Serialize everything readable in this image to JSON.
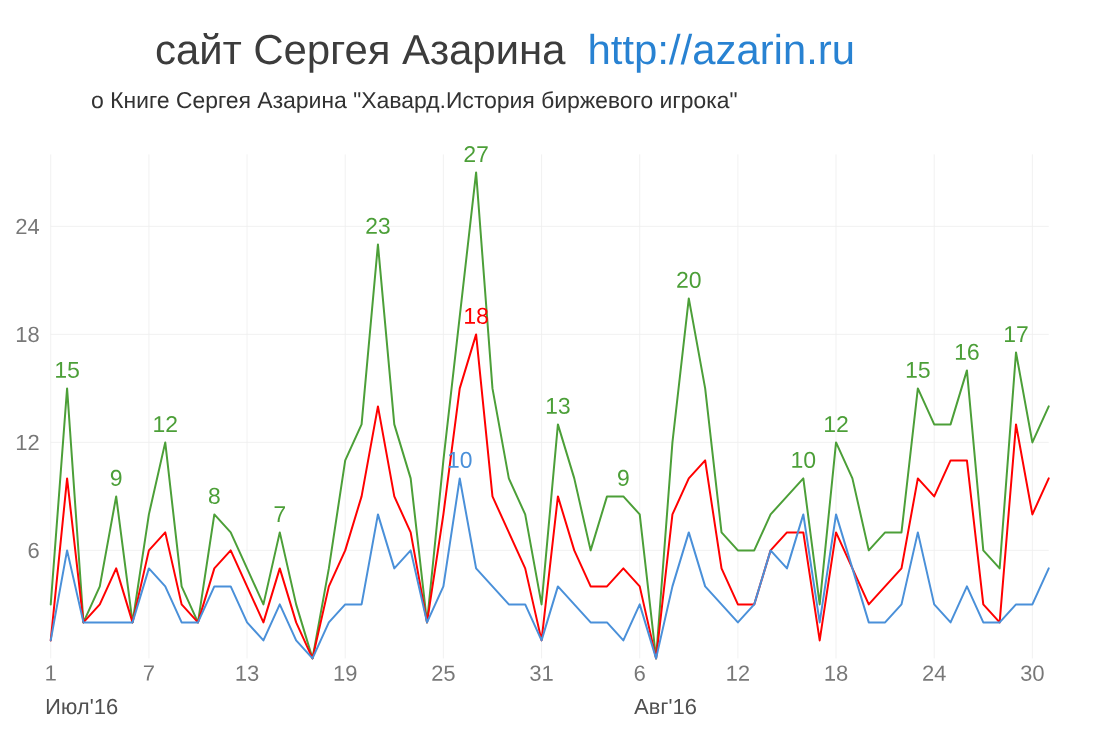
{
  "chart_data": {
    "type": "line",
    "title": "сайт Сергея Азарина",
    "subtitle": "о Книге Сергея Азарина \"Хавард.История биржевого игрока\"",
    "annotations": [
      "http://azarin.ru",
      "Июл'16",
      "Авг'16"
    ],
    "x": [
      "2016-07-01",
      "2016-07-02",
      "2016-07-03",
      "2016-07-04",
      "2016-07-05",
      "2016-07-06",
      "2016-07-07",
      "2016-07-08",
      "2016-07-09",
      "2016-07-10",
      "2016-07-11",
      "2016-07-12",
      "2016-07-13",
      "2016-07-14",
      "2016-07-15",
      "2016-07-16",
      "2016-07-17",
      "2016-07-18",
      "2016-07-19",
      "2016-07-20",
      "2016-07-21",
      "2016-07-22",
      "2016-07-23",
      "2016-07-24",
      "2016-07-25",
      "2016-07-26",
      "2016-07-27",
      "2016-07-28",
      "2016-07-29",
      "2016-07-30",
      "2016-07-31",
      "2016-08-01",
      "2016-08-02",
      "2016-08-03",
      "2016-08-04",
      "2016-08-05",
      "2016-08-06",
      "2016-08-07",
      "2016-08-08",
      "2016-08-09",
      "2016-08-10",
      "2016-08-11",
      "2016-08-12",
      "2016-08-13",
      "2016-08-14",
      "2016-08-15",
      "2016-08-16",
      "2016-08-17",
      "2016-08-18",
      "2016-08-19",
      "2016-08-20",
      "2016-08-21",
      "2016-08-22",
      "2016-08-23",
      "2016-08-24",
      "2016-08-25",
      "2016-08-26",
      "2016-08-27",
      "2016-08-28",
      "2016-08-29",
      "2016-08-30",
      "2016-08-31"
    ],
    "series": [
      {
        "color": "#4c9f38",
        "values": [
          3,
          15,
          2,
          4,
          9,
          2,
          8,
          12,
          4,
          2,
          8,
          7,
          5,
          3,
          7,
          3,
          0,
          5,
          11,
          13,
          23,
          13,
          10,
          2,
          11,
          19,
          27,
          15,
          10,
          8,
          3,
          13,
          10,
          6,
          9,
          9,
          8,
          0,
          12,
          20,
          15,
          7,
          6,
          6,
          8,
          9,
          10,
          3,
          12,
          10,
          6,
          7,
          7,
          15,
          13,
          13,
          16,
          6,
          5,
          17,
          12,
          14
        ],
        "value_labels": [
          null,
          "15",
          null,
          null,
          "9",
          null,
          null,
          "12",
          null,
          null,
          "8",
          null,
          null,
          null,
          "7",
          null,
          null,
          null,
          null,
          null,
          "23",
          null,
          null,
          null,
          null,
          null,
          "27",
          null,
          null,
          null,
          null,
          "13",
          null,
          null,
          null,
          "9",
          null,
          null,
          null,
          "20",
          null,
          null,
          null,
          null,
          null,
          null,
          "10",
          null,
          "12",
          null,
          null,
          null,
          null,
          "15",
          null,
          null,
          "16",
          null,
          null,
          "17",
          null,
          null
        ]
      },
      {
        "color": "#ff0000",
        "values": [
          1,
          10,
          2,
          3,
          5,
          2,
          6,
          7,
          3,
          2,
          5,
          6,
          4,
          2,
          5,
          2,
          0,
          4,
          6,
          9,
          14,
          9,
          7,
          2,
          8,
          15,
          18,
          9,
          7,
          5,
          1,
          9,
          6,
          4,
          4,
          5,
          4,
          0,
          8,
          10,
          11,
          5,
          3,
          3,
          6,
          7,
          7,
          1,
          7,
          5,
          3,
          4,
          5,
          10,
          9,
          11,
          11,
          3,
          2,
          13,
          8,
          10
        ],
        "value_labels": [
          null,
          null,
          null,
          null,
          null,
          null,
          null,
          null,
          null,
          null,
          null,
          null,
          null,
          null,
          null,
          null,
          null,
          null,
          null,
          null,
          null,
          null,
          null,
          null,
          null,
          null,
          "18",
          null,
          null,
          null,
          null,
          null,
          null,
          null,
          null,
          null,
          null,
          null,
          null,
          null,
          null,
          null,
          null,
          null,
          null,
          null,
          null,
          null,
          null,
          null,
          null,
          null,
          null,
          null,
          null,
          null,
          null,
          null,
          null,
          null,
          null,
          null
        ]
      },
      {
        "color": "#4a90d9",
        "values": [
          1,
          6,
          2,
          2,
          2,
          2,
          5,
          4,
          2,
          2,
          4,
          4,
          2,
          1,
          3,
          1,
          0,
          2,
          3,
          3,
          8,
          5,
          6,
          2,
          4,
          10,
          5,
          4,
          3,
          3,
          1,
          4,
          3,
          2,
          2,
          1,
          3,
          0,
          4,
          7,
          4,
          3,
          2,
          3,
          6,
          5,
          8,
          2,
          8,
          5,
          2,
          2,
          3,
          7,
          3,
          2,
          4,
          2,
          2,
          3,
          3,
          5
        ],
        "value_labels": [
          null,
          null,
          null,
          null,
          null,
          null,
          null,
          null,
          null,
          null,
          null,
          null,
          null,
          null,
          null,
          null,
          null,
          null,
          null,
          null,
          null,
          null,
          null,
          null,
          null,
          "10",
          null,
          null,
          null,
          null,
          null,
          null,
          null,
          null,
          null,
          null,
          null,
          null,
          null,
          null,
          null,
          null,
          null,
          null,
          null,
          null,
          null,
          null,
          null,
          null,
          null,
          null,
          null,
          null,
          null,
          null,
          null,
          null,
          null,
          null,
          null,
          null
        ]
      }
    ],
    "xlim": [
      "2016-07-01",
      "2016-08-31"
    ],
    "xticks": [
      {
        "value": "2016-07-01",
        "label": "1"
      },
      {
        "value": "2016-07-07",
        "label": "7"
      },
      {
        "value": "2016-07-13",
        "label": "13"
      },
      {
        "value": "2016-07-19",
        "label": "19"
      },
      {
        "value": "2016-07-25",
        "label": "25"
      },
      {
        "value": "2016-07-31",
        "label": "31"
      },
      {
        "value": "2016-08-06",
        "label": "6"
      },
      {
        "value": "2016-08-12",
        "label": "12"
      },
      {
        "value": "2016-08-18",
        "label": "18"
      },
      {
        "value": "2016-08-24",
        "label": "24"
      },
      {
        "value": "2016-08-30",
        "label": "30"
      }
    ],
    "ylim": [
      0,
      28
    ],
    "yticks": [
      6,
      12,
      18,
      24
    ],
    "grid": true,
    "marker": "none",
    "line_style": "solid"
  }
}
